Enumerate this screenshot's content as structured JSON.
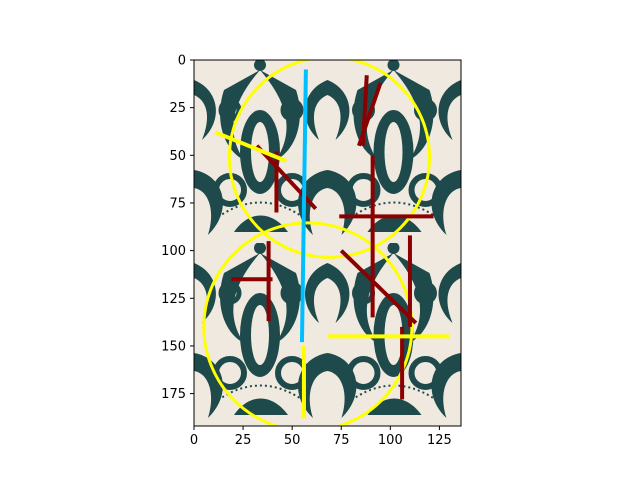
{
  "figure": {
    "image_description": "decorative ceramic tile image with dark teal floral motif on cream background",
    "background_color": "#ffffff",
    "tile_colors": {
      "cream": "#efe9df",
      "teal": "#1f4a4c"
    }
  },
  "chart_data": {
    "type": "image_overlay",
    "xlim": [
      0,
      136
    ],
    "ylim": [
      192,
      0
    ],
    "x_ticks": [
      0,
      25,
      50,
      75,
      100,
      125
    ],
    "y_ticks": [
      0,
      25,
      50,
      75,
      100,
      125,
      150,
      175
    ],
    "x_tick_labels": [
      "0",
      "25",
      "50",
      "75",
      "100",
      "125"
    ],
    "y_tick_labels": [
      "0",
      "25",
      "50",
      "75",
      "100",
      "125",
      "150",
      "175"
    ],
    "circles": [
      {
        "cx": 69,
        "cy": 51,
        "r": 51,
        "color": "#ffff00"
      },
      {
        "cx": 58,
        "cy": 140,
        "r": 53,
        "color": "#ffff00"
      }
    ],
    "yellow_lines": [
      {
        "x1": 11,
        "y1": 38,
        "x2": 47,
        "y2": 53,
        "color": "#ffff00"
      },
      {
        "x1": 68,
        "y1": 145,
        "x2": 130,
        "y2": 145,
        "color": "#ffff00"
      },
      {
        "x1": 56,
        "y1": 150,
        "x2": 56,
        "y2": 188,
        "color": "#ffff00"
      }
    ],
    "blue_lines": [
      {
        "x1": 57,
        "y1": 5,
        "x2": 55,
        "y2": 148,
        "color": "#00bfff"
      }
    ],
    "red_lines": [
      {
        "x1": 88,
        "y1": 8,
        "x2": 86,
        "y2": 45,
        "color": "#8b0000"
      },
      {
        "x1": 84,
        "y1": 45,
        "x2": 95,
        "y2": 12,
        "color": "#8b0000"
      },
      {
        "x1": 42,
        "y1": 48,
        "x2": 42,
        "y2": 80,
        "color": "#8b0000"
      },
      {
        "x1": 32,
        "y1": 45,
        "x2": 62,
        "y2": 78,
        "color": "#8b0000"
      },
      {
        "x1": 91,
        "y1": 50,
        "x2": 91,
        "y2": 135,
        "color": "#8b0000"
      },
      {
        "x1": 74,
        "y1": 82,
        "x2": 122,
        "y2": 82,
        "color": "#8b0000"
      },
      {
        "x1": 110,
        "y1": 92,
        "x2": 110,
        "y2": 140,
        "color": "#8b0000"
      },
      {
        "x1": 75,
        "y1": 100,
        "x2": 113,
        "y2": 138,
        "color": "#8b0000"
      },
      {
        "x1": 38,
        "y1": 95,
        "x2": 38,
        "y2": 137,
        "color": "#8b0000"
      },
      {
        "x1": 19,
        "y1": 115,
        "x2": 40,
        "y2": 115,
        "color": "#8b0000"
      },
      {
        "x1": 106,
        "y1": 140,
        "x2": 106,
        "y2": 178,
        "color": "#8b0000"
      }
    ]
  }
}
